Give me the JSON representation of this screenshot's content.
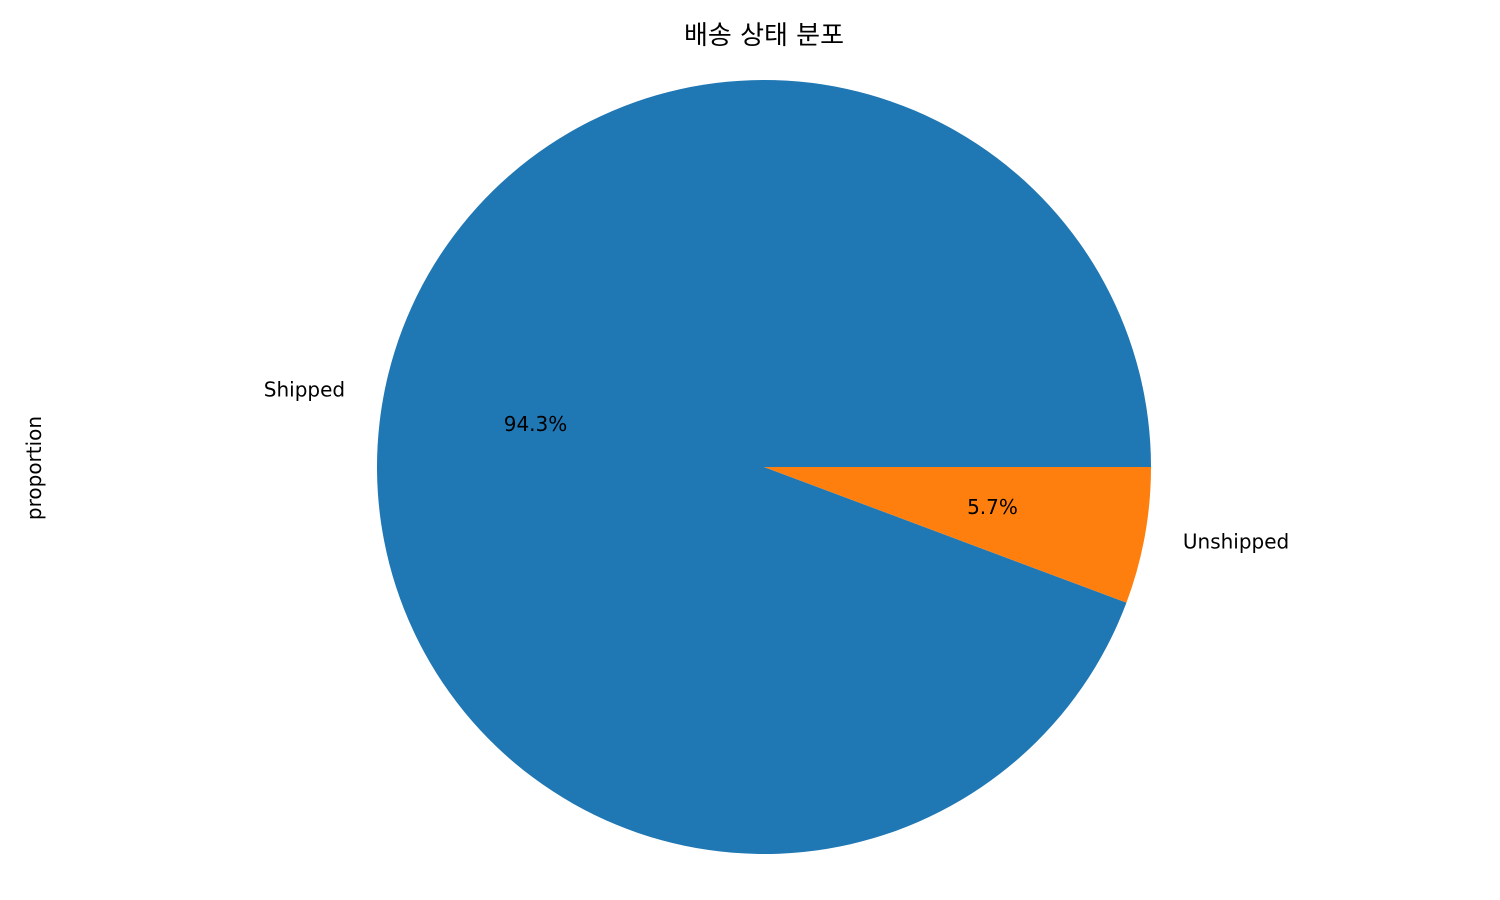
{
  "chart_data": {
    "type": "pie",
    "title": "배송 상태 분포",
    "ylabel": "proportion",
    "categories": [
      "Shipped",
      "Unshipped"
    ],
    "values": [
      94.3,
      5.7
    ],
    "value_labels": [
      "94.3%",
      "5.7%"
    ],
    "colors": [
      "#1f77b4",
      "#ff7f0e"
    ],
    "start_angle": "0 degrees (3 o'clock), counterclockwise",
    "legend": "none"
  }
}
